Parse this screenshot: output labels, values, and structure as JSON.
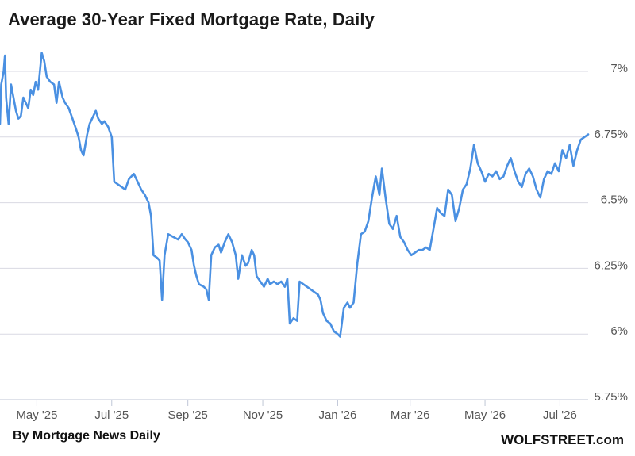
{
  "chart_data": {
    "type": "line",
    "title": "Average 30-Year Fixed Mortgage Rate, Daily",
    "source": "By Mortgage News Daily",
    "brand": "WOLFSTREET.com",
    "color": "#4a90e2",
    "ylim": [
      5.75,
      7.0
    ],
    "y_ticks": [
      {
        "value": 7.0,
        "label": "7%"
      },
      {
        "value": 6.75,
        "label": "6.75%"
      },
      {
        "value": 6.5,
        "label": "6.5%"
      },
      {
        "value": 6.25,
        "label": "6.25%"
      },
      {
        "value": 6.0,
        "label": "6%"
      },
      {
        "value": 5.75,
        "label": "5.75%"
      }
    ],
    "x_range": [
      "2025-04-01",
      "2026-07-24"
    ],
    "x_ticks": [
      {
        "date": "2025-05-01",
        "label": "May '25"
      },
      {
        "date": "2025-07-01",
        "label": "Jul '25"
      },
      {
        "date": "2025-09-01",
        "label": "Sep '25"
      },
      {
        "date": "2025-11-01",
        "label": "Nov '25"
      },
      {
        "date": "2026-01-01",
        "label": "Jan '26"
      },
      {
        "date": "2026-03-01",
        "label": "Mar '26"
      },
      {
        "date": "2026-05-01",
        "label": "May '26"
      },
      {
        "date": "2026-07-01",
        "label": "Jul '26"
      }
    ],
    "series": [
      {
        "points": [
          [
            "2025-04-01",
            6.8
          ],
          [
            "2025-04-02",
            6.95
          ],
          [
            "2025-04-04",
            7.0
          ],
          [
            "2025-04-05",
            7.06
          ],
          [
            "2025-04-06",
            6.9
          ],
          [
            "2025-04-08",
            6.8
          ],
          [
            "2025-04-10",
            6.95
          ],
          [
            "2025-04-12",
            6.9
          ],
          [
            "2025-04-14",
            6.85
          ],
          [
            "2025-04-16",
            6.82
          ],
          [
            "2025-04-18",
            6.83
          ],
          [
            "2025-04-20",
            6.9
          ],
          [
            "2025-04-22",
            6.88
          ],
          [
            "2025-04-24",
            6.86
          ],
          [
            "2025-04-26",
            6.93
          ],
          [
            "2025-04-28",
            6.91
          ],
          [
            "2025-04-30",
            6.96
          ],
          [
            "2025-05-02",
            6.93
          ],
          [
            "2025-05-05",
            7.07
          ],
          [
            "2025-05-07",
            7.04
          ],
          [
            "2025-05-09",
            6.98
          ],
          [
            "2025-05-12",
            6.96
          ],
          [
            "2025-05-15",
            6.95
          ],
          [
            "2025-05-17",
            6.88
          ],
          [
            "2025-05-19",
            6.96
          ],
          [
            "2025-05-22",
            6.9
          ],
          [
            "2025-05-24",
            6.88
          ],
          [
            "2025-05-27",
            6.86
          ],
          [
            "2025-05-30",
            6.82
          ],
          [
            "2025-06-02",
            6.78
          ],
          [
            "2025-06-04",
            6.75
          ],
          [
            "2025-06-06",
            6.7
          ],
          [
            "2025-06-08",
            6.68
          ],
          [
            "2025-06-11",
            6.76
          ],
          [
            "2025-06-13",
            6.8
          ],
          [
            "2025-06-16",
            6.83
          ],
          [
            "2025-06-18",
            6.85
          ],
          [
            "2025-06-20",
            6.82
          ],
          [
            "2025-06-23",
            6.8
          ],
          [
            "2025-06-25",
            6.81
          ],
          [
            "2025-06-28",
            6.79
          ],
          [
            "2025-07-01",
            6.75
          ],
          [
            "2025-07-03",
            6.58
          ],
          [
            "2025-07-06",
            6.57
          ],
          [
            "2025-07-09",
            6.56
          ],
          [
            "2025-07-12",
            6.55
          ],
          [
            "2025-07-15",
            6.59
          ],
          [
            "2025-07-19",
            6.61
          ],
          [
            "2025-07-22",
            6.58
          ],
          [
            "2025-07-25",
            6.55
          ],
          [
            "2025-07-28",
            6.53
          ],
          [
            "2025-07-31",
            6.5
          ],
          [
            "2025-08-02",
            6.45
          ],
          [
            "2025-08-04",
            6.3
          ],
          [
            "2025-08-07",
            6.29
          ],
          [
            "2025-08-09",
            6.28
          ],
          [
            "2025-08-11",
            6.13
          ],
          [
            "2025-08-13",
            6.3
          ],
          [
            "2025-08-16",
            6.38
          ],
          [
            "2025-08-20",
            6.37
          ],
          [
            "2025-08-24",
            6.36
          ],
          [
            "2025-08-27",
            6.38
          ],
          [
            "2025-08-30",
            6.36
          ],
          [
            "2025-09-01",
            6.35
          ],
          [
            "2025-09-04",
            6.32
          ],
          [
            "2025-09-06",
            6.26
          ],
          [
            "2025-09-08",
            6.22
          ],
          [
            "2025-09-10",
            6.19
          ],
          [
            "2025-09-14",
            6.18
          ],
          [
            "2025-09-16",
            6.17
          ],
          [
            "2025-09-18",
            6.13
          ],
          [
            "2025-09-20",
            6.3
          ],
          [
            "2025-09-23",
            6.33
          ],
          [
            "2025-09-26",
            6.34
          ],
          [
            "2025-09-28",
            6.31
          ],
          [
            "2025-10-01",
            6.35
          ],
          [
            "2025-10-04",
            6.38
          ],
          [
            "2025-10-07",
            6.35
          ],
          [
            "2025-10-10",
            6.3
          ],
          [
            "2025-10-12",
            6.21
          ],
          [
            "2025-10-15",
            6.3
          ],
          [
            "2025-10-18",
            6.26
          ],
          [
            "2025-10-20",
            6.27
          ],
          [
            "2025-10-23",
            6.32
          ],
          [
            "2025-10-25",
            6.3
          ],
          [
            "2025-10-27",
            6.22
          ],
          [
            "2025-10-30",
            6.2
          ],
          [
            "2025-11-02",
            6.18
          ],
          [
            "2025-11-05",
            6.21
          ],
          [
            "2025-11-07",
            6.19
          ],
          [
            "2025-11-10",
            6.2
          ],
          [
            "2025-11-13",
            6.19
          ],
          [
            "2025-11-16",
            6.2
          ],
          [
            "2025-11-19",
            6.18
          ],
          [
            "2025-11-21",
            6.21
          ],
          [
            "2025-11-23",
            6.04
          ],
          [
            "2025-11-26",
            6.06
          ],
          [
            "2025-11-29",
            6.05
          ],
          [
            "2025-12-01",
            6.2
          ],
          [
            "2025-12-04",
            6.19
          ],
          [
            "2025-12-07",
            6.18
          ],
          [
            "2025-12-10",
            6.17
          ],
          [
            "2025-12-13",
            6.16
          ],
          [
            "2025-12-16",
            6.15
          ],
          [
            "2025-12-18",
            6.13
          ],
          [
            "2025-12-20",
            6.08
          ],
          [
            "2025-12-23",
            6.05
          ],
          [
            "2025-12-26",
            6.04
          ],
          [
            "2025-12-29",
            6.01
          ],
          [
            "2026-01-01",
            6.0
          ],
          [
            "2026-01-03",
            5.99
          ],
          [
            "2026-01-06",
            6.1
          ],
          [
            "2026-01-09",
            6.12
          ],
          [
            "2026-01-11",
            6.1
          ],
          [
            "2026-01-14",
            6.12
          ],
          [
            "2026-01-17",
            6.27
          ],
          [
            "2026-01-20",
            6.38
          ],
          [
            "2026-01-23",
            6.39
          ],
          [
            "2026-01-26",
            6.43
          ],
          [
            "2026-01-29",
            6.52
          ],
          [
            "2026-02-01",
            6.6
          ],
          [
            "2026-02-04",
            6.53
          ],
          [
            "2026-02-06",
            6.63
          ],
          [
            "2026-02-09",
            6.52
          ],
          [
            "2026-02-12",
            6.42
          ],
          [
            "2026-02-15",
            6.4
          ],
          [
            "2026-02-18",
            6.45
          ],
          [
            "2026-02-21",
            6.37
          ],
          [
            "2026-02-24",
            6.35
          ],
          [
            "2026-02-27",
            6.32
          ],
          [
            "2026-03-02",
            6.3
          ],
          [
            "2026-03-05",
            6.31
          ],
          [
            "2026-03-08",
            6.32
          ],
          [
            "2026-03-11",
            6.32
          ],
          [
            "2026-03-14",
            6.33
          ],
          [
            "2026-03-17",
            6.32
          ],
          [
            "2026-03-20",
            6.4
          ],
          [
            "2026-03-23",
            6.48
          ],
          [
            "2026-03-26",
            6.46
          ],
          [
            "2026-03-29",
            6.45
          ],
          [
            "2026-04-01",
            6.55
          ],
          [
            "2026-04-04",
            6.53
          ],
          [
            "2026-04-07",
            6.43
          ],
          [
            "2026-04-10",
            6.48
          ],
          [
            "2026-04-13",
            6.55
          ],
          [
            "2026-04-16",
            6.57
          ],
          [
            "2026-04-19",
            6.63
          ],
          [
            "2026-04-22",
            6.72
          ],
          [
            "2026-04-25",
            6.65
          ],
          [
            "2026-04-28",
            6.62
          ],
          [
            "2026-05-01",
            6.58
          ],
          [
            "2026-05-04",
            6.61
          ],
          [
            "2026-05-07",
            6.6
          ],
          [
            "2026-05-10",
            6.62
          ],
          [
            "2026-05-13",
            6.59
          ],
          [
            "2026-05-16",
            6.6
          ],
          [
            "2026-05-19",
            6.64
          ],
          [
            "2026-05-22",
            6.67
          ],
          [
            "2026-05-25",
            6.62
          ],
          [
            "2026-05-28",
            6.58
          ],
          [
            "2026-05-31",
            6.56
          ],
          [
            "2026-06-03",
            6.61
          ],
          [
            "2026-06-06",
            6.63
          ],
          [
            "2026-06-09",
            6.6
          ],
          [
            "2026-06-12",
            6.55
          ],
          [
            "2026-06-15",
            6.52
          ],
          [
            "2026-06-18",
            6.59
          ],
          [
            "2026-06-21",
            6.62
          ],
          [
            "2026-06-24",
            6.61
          ],
          [
            "2026-06-27",
            6.65
          ],
          [
            "2026-06-30",
            6.62
          ],
          [
            "2026-07-03",
            6.7
          ],
          [
            "2026-07-06",
            6.67
          ],
          [
            "2026-07-09",
            6.72
          ],
          [
            "2026-07-12",
            6.64
          ],
          [
            "2026-07-15",
            6.7
          ],
          [
            "2026-07-18",
            6.74
          ],
          [
            "2026-07-21",
            6.75
          ],
          [
            "2026-07-24",
            6.76
          ]
        ]
      }
    ]
  }
}
